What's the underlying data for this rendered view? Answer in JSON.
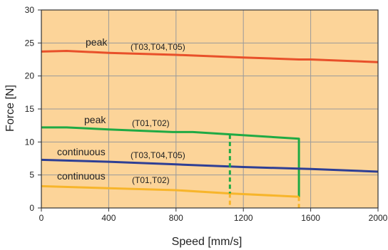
{
  "chart_data": {
    "type": "line",
    "xlabel": "Speed [mm/s]",
    "ylabel": "Force [N]",
    "xlim": [
      0,
      2000
    ],
    "ylim": [
      0,
      30
    ],
    "x_ticks": [
      0,
      400,
      800,
      1200,
      1600,
      2000
    ],
    "y_ticks": [
      0,
      5,
      10,
      15,
      20,
      25,
      30
    ],
    "grid": true,
    "background_color": "#fcd499",
    "series": [
      {
        "label_text": "peak",
        "label_models": "(T03,T04,T05)",
        "color": "#e8502a",
        "style": "solid",
        "x": [
          0,
          150,
          400,
          800,
          1200,
          1530,
          1600,
          2000
        ],
        "y": [
          23.7,
          23.8,
          23.5,
          23.2,
          22.8,
          22.5,
          22.5,
          22.1
        ]
      },
      {
        "label_text": "peak",
        "label_models": "(T01,T02)",
        "color": "#1faa44",
        "style": "solid",
        "x": [
          0,
          150,
          400,
          780,
          900,
          1530,
          1530
        ],
        "y": [
          12.2,
          12.2,
          11.9,
          11.5,
          11.5,
          10.5,
          1.6
        ]
      },
      {
        "label_text": "continuous",
        "label_models": "(T03,T04,T05)",
        "color": "#2e3f95",
        "style": "solid",
        "x": [
          0,
          400,
          800,
          1200,
          1600,
          2000
        ],
        "y": [
          7.3,
          7.0,
          6.6,
          6.2,
          5.9,
          5.5
        ]
      },
      {
        "label_text": "continuous",
        "label_models": "(T01,T02)",
        "color": "#f7b52b",
        "style": "solid",
        "x": [
          0,
          400,
          800,
          1120,
          1530
        ],
        "y": [
          3.3,
          3.0,
          2.7,
          2.2,
          1.7
        ]
      }
    ],
    "dashed_markers": [
      {
        "color": "#1faa44",
        "x": 1120,
        "y_from": 11.1,
        "y_to": 2.2
      },
      {
        "color": "#f7b52b",
        "x": 1120,
        "y_from": 2.2,
        "y_to": 0
      },
      {
        "color": "#f7b52b",
        "x": 1530,
        "y_from": 1.7,
        "y_to": 0
      }
    ]
  }
}
